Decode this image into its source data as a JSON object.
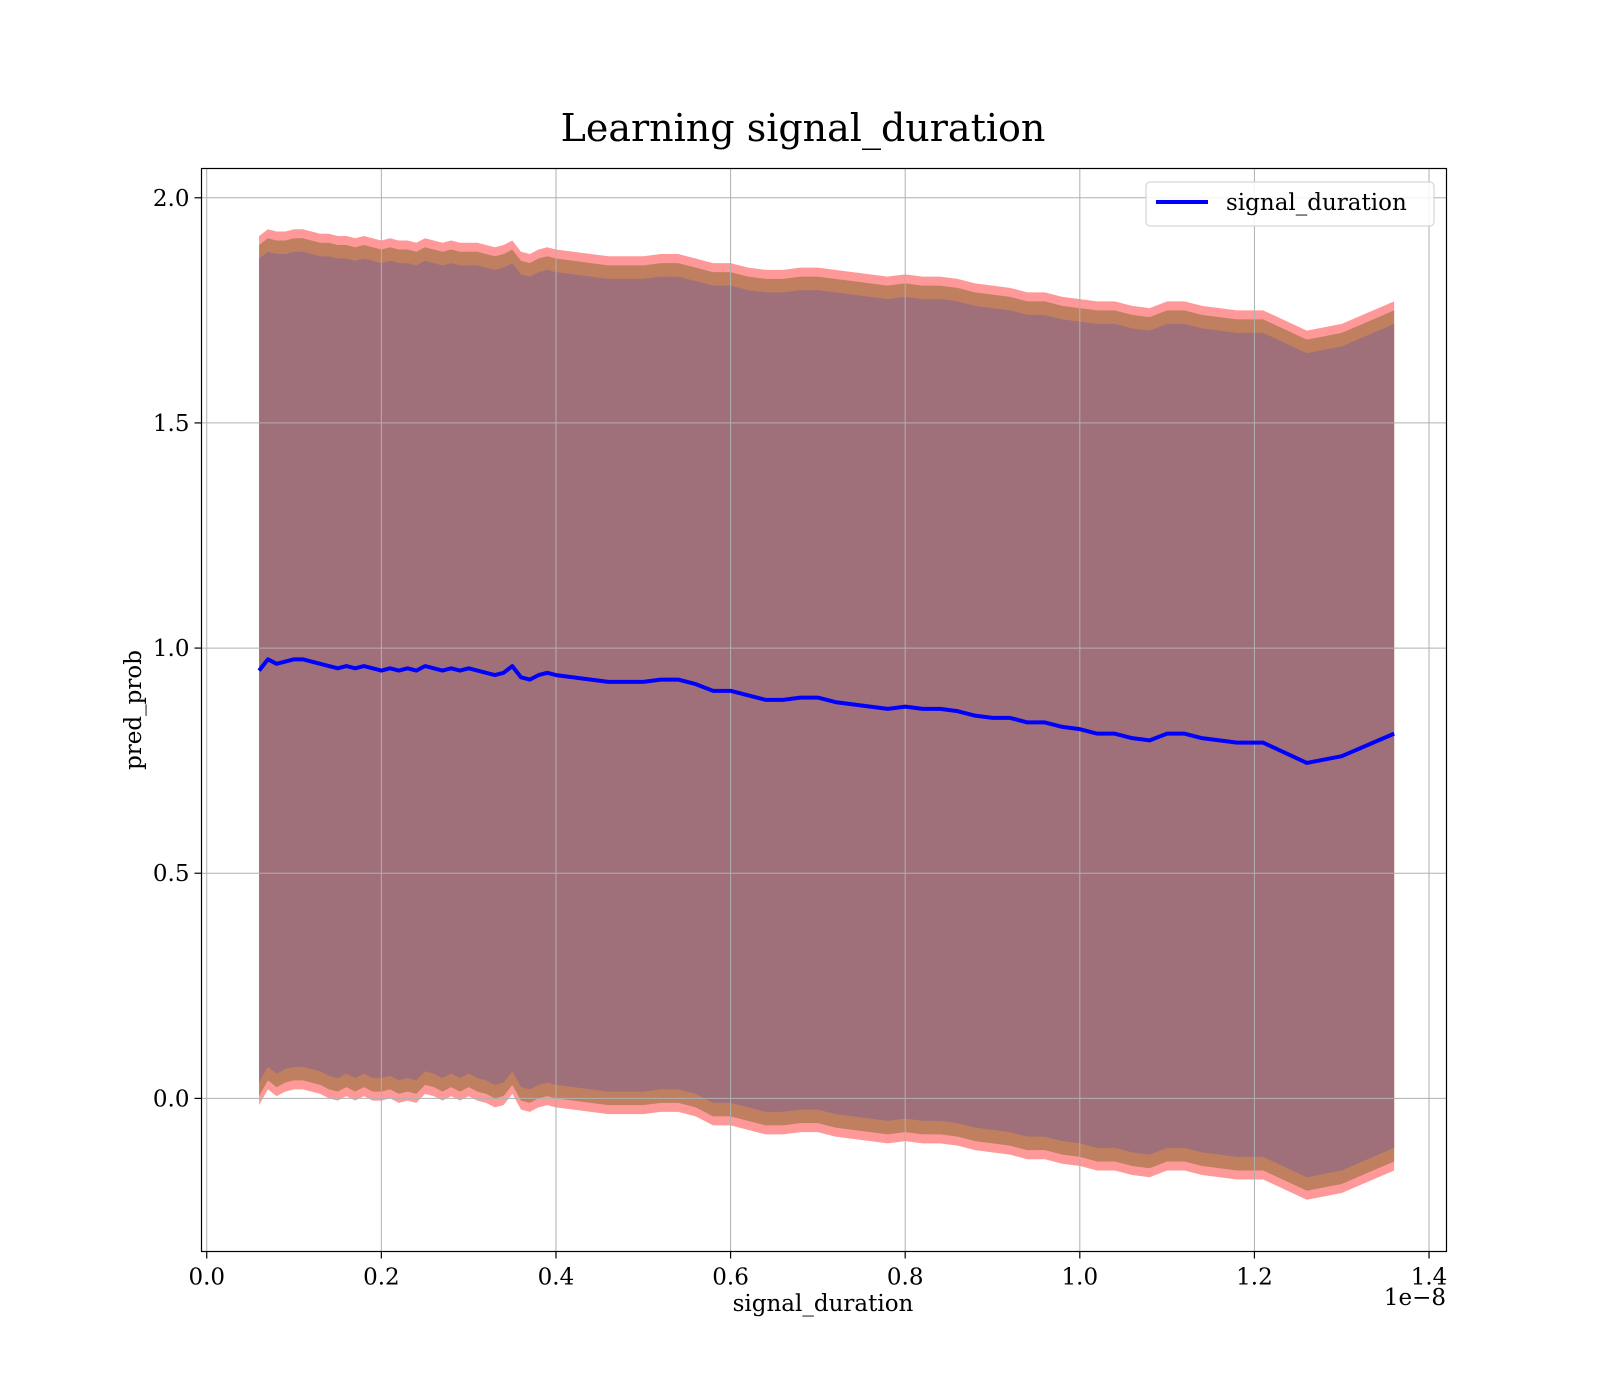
{
  "chart_data": {
    "type": "line",
    "title": "Learning signal_duration",
    "xlabel": "signal_duration",
    "ylabel": "pred_prob",
    "x_offset_text": "1e−8",
    "xlim": [
      -0.006,
      1.42
    ],
    "ylim": [
      -0.34,
      2.065
    ],
    "x_ticks": [
      0.0,
      0.2,
      0.4,
      0.6,
      0.8,
      1.0,
      1.2,
      1.4
    ],
    "x_tick_labels": [
      "0.0",
      "0.2",
      "0.4",
      "0.6",
      "0.8",
      "1.0",
      "1.2",
      "1.4"
    ],
    "y_ticks": [
      0.0,
      0.5,
      1.0,
      1.5,
      2.0
    ],
    "y_tick_labels": [
      "0.0",
      "0.5",
      "1.0",
      "1.5",
      "2.0"
    ],
    "grid": true,
    "legend_position": "top-right",
    "x_scale_note": "x values in units of 1e-8",
    "series": [
      {
        "name": "signal_duration",
        "color": "#0000ff",
        "x": [
          0.06,
          0.07,
          0.08,
          0.09,
          0.1,
          0.11,
          0.12,
          0.13,
          0.14,
          0.15,
          0.16,
          0.17,
          0.18,
          0.19,
          0.2,
          0.21,
          0.22,
          0.23,
          0.24,
          0.25,
          0.26,
          0.27,
          0.28,
          0.29,
          0.3,
          0.31,
          0.32,
          0.33,
          0.34,
          0.35,
          0.36,
          0.37,
          0.38,
          0.39,
          0.4,
          0.42,
          0.44,
          0.46,
          0.48,
          0.5,
          0.52,
          0.54,
          0.56,
          0.58,
          0.6,
          0.62,
          0.64,
          0.66,
          0.68,
          0.7,
          0.72,
          0.74,
          0.76,
          0.78,
          0.8,
          0.82,
          0.84,
          0.86,
          0.88,
          0.9,
          0.92,
          0.94,
          0.96,
          0.98,
          1.0,
          1.02,
          1.04,
          1.06,
          1.08,
          1.1,
          1.12,
          1.14,
          1.16,
          1.18,
          1.21,
          1.26,
          1.3,
          1.36
        ],
        "y": [
          0.95,
          0.975,
          0.965,
          0.97,
          0.975,
          0.975,
          0.97,
          0.965,
          0.96,
          0.955,
          0.96,
          0.955,
          0.96,
          0.955,
          0.95,
          0.955,
          0.95,
          0.955,
          0.95,
          0.96,
          0.955,
          0.95,
          0.955,
          0.95,
          0.955,
          0.95,
          0.945,
          0.94,
          0.945,
          0.96,
          0.935,
          0.93,
          0.94,
          0.945,
          0.94,
          0.935,
          0.93,
          0.925,
          0.925,
          0.925,
          0.93,
          0.93,
          0.92,
          0.905,
          0.905,
          0.895,
          0.885,
          0.885,
          0.89,
          0.89,
          0.88,
          0.875,
          0.87,
          0.865,
          0.87,
          0.865,
          0.865,
          0.86,
          0.85,
          0.845,
          0.845,
          0.835,
          0.835,
          0.825,
          0.82,
          0.81,
          0.81,
          0.8,
          0.795,
          0.81,
          0.81,
          0.8,
          0.795,
          0.79,
          0.79,
          0.745,
          0.76,
          0.81
        ]
      }
    ],
    "bands": [
      {
        "color": "#ff9999",
        "upper": [
          1.915,
          1.93,
          1.925,
          1.925,
          1.93,
          1.93,
          1.925,
          1.92,
          1.92,
          1.915,
          1.915,
          1.91,
          1.915,
          1.91,
          1.905,
          1.91,
          1.905,
          1.905,
          1.9,
          1.91,
          1.905,
          1.9,
          1.905,
          1.9,
          1.9,
          1.9,
          1.895,
          1.89,
          1.895,
          1.905,
          1.88,
          1.875,
          1.885,
          1.89,
          1.885,
          1.88,
          1.875,
          1.87,
          1.87,
          1.87,
          1.875,
          1.875,
          1.865,
          1.855,
          1.855,
          1.845,
          1.84,
          1.84,
          1.845,
          1.845,
          1.84,
          1.835,
          1.83,
          1.825,
          1.83,
          1.825,
          1.825,
          1.82,
          1.81,
          1.805,
          1.8,
          1.79,
          1.79,
          1.78,
          1.775,
          1.77,
          1.77,
          1.76,
          1.755,
          1.77,
          1.77,
          1.76,
          1.755,
          1.75,
          1.75,
          1.705,
          1.72,
          1.77
        ],
        "lower": [
          -0.015,
          0.02,
          0.005,
          0.015,
          0.02,
          0.02,
          0.015,
          0.01,
          0.0,
          -0.005,
          0.005,
          -0.005,
          0.005,
          -0.005,
          -0.005,
          0.0,
          -0.01,
          -0.005,
          -0.01,
          0.01,
          0.005,
          -0.005,
          0.005,
          -0.005,
          0.005,
          -0.005,
          -0.01,
          -0.02,
          -0.015,
          0.01,
          -0.025,
          -0.03,
          -0.02,
          -0.015,
          -0.02,
          -0.025,
          -0.03,
          -0.035,
          -0.035,
          -0.035,
          -0.03,
          -0.03,
          -0.04,
          -0.06,
          -0.06,
          -0.07,
          -0.08,
          -0.08,
          -0.075,
          -0.075,
          -0.085,
          -0.09,
          -0.095,
          -0.1,
          -0.095,
          -0.1,
          -0.1,
          -0.105,
          -0.115,
          -0.12,
          -0.125,
          -0.135,
          -0.135,
          -0.145,
          -0.15,
          -0.16,
          -0.16,
          -0.17,
          -0.175,
          -0.16,
          -0.16,
          -0.17,
          -0.175,
          -0.18,
          -0.18,
          -0.225,
          -0.21,
          -0.16
        ]
      },
      {
        "color": "#c08060",
        "upper": [
          1.895,
          1.91,
          1.905,
          1.905,
          1.91,
          1.91,
          1.905,
          1.9,
          1.9,
          1.895,
          1.895,
          1.89,
          1.895,
          1.89,
          1.885,
          1.89,
          1.885,
          1.885,
          1.88,
          1.89,
          1.885,
          1.88,
          1.885,
          1.88,
          1.88,
          1.88,
          1.875,
          1.87,
          1.875,
          1.885,
          1.86,
          1.855,
          1.865,
          1.87,
          1.865,
          1.86,
          1.855,
          1.85,
          1.85,
          1.85,
          1.855,
          1.855,
          1.845,
          1.835,
          1.835,
          1.825,
          1.82,
          1.82,
          1.825,
          1.825,
          1.82,
          1.815,
          1.81,
          1.805,
          1.81,
          1.805,
          1.805,
          1.8,
          1.79,
          1.785,
          1.78,
          1.77,
          1.77,
          1.76,
          1.755,
          1.75,
          1.75,
          1.74,
          1.735,
          1.75,
          1.75,
          1.74,
          1.735,
          1.73,
          1.73,
          1.685,
          1.7,
          1.75
        ],
        "lower": [
          0.005,
          0.04,
          0.025,
          0.035,
          0.04,
          0.04,
          0.035,
          0.03,
          0.02,
          0.015,
          0.025,
          0.015,
          0.025,
          0.015,
          0.015,
          0.02,
          0.01,
          0.015,
          0.01,
          0.03,
          0.025,
          0.015,
          0.025,
          0.015,
          0.025,
          0.015,
          0.01,
          0.0,
          0.005,
          0.03,
          -0.005,
          -0.01,
          0.0,
          0.005,
          0.0,
          -0.005,
          -0.01,
          -0.015,
          -0.015,
          -0.015,
          -0.01,
          -0.01,
          -0.02,
          -0.04,
          -0.04,
          -0.05,
          -0.06,
          -0.06,
          -0.055,
          -0.055,
          -0.065,
          -0.07,
          -0.075,
          -0.08,
          -0.075,
          -0.08,
          -0.08,
          -0.085,
          -0.095,
          -0.1,
          -0.105,
          -0.115,
          -0.115,
          -0.125,
          -0.13,
          -0.14,
          -0.14,
          -0.15,
          -0.155,
          -0.14,
          -0.14,
          -0.15,
          -0.155,
          -0.16,
          -0.16,
          -0.205,
          -0.19,
          -0.14
        ]
      },
      {
        "color": "#a0707a",
        "upper": [
          1.865,
          1.88,
          1.875,
          1.875,
          1.88,
          1.88,
          1.875,
          1.87,
          1.87,
          1.865,
          1.865,
          1.86,
          1.865,
          1.86,
          1.855,
          1.86,
          1.855,
          1.855,
          1.85,
          1.86,
          1.855,
          1.85,
          1.855,
          1.85,
          1.85,
          1.85,
          1.845,
          1.84,
          1.845,
          1.855,
          1.83,
          1.825,
          1.835,
          1.84,
          1.835,
          1.83,
          1.825,
          1.82,
          1.82,
          1.82,
          1.825,
          1.825,
          1.815,
          1.805,
          1.805,
          1.795,
          1.79,
          1.79,
          1.795,
          1.795,
          1.79,
          1.785,
          1.78,
          1.775,
          1.78,
          1.775,
          1.775,
          1.77,
          1.76,
          1.755,
          1.75,
          1.74,
          1.74,
          1.73,
          1.725,
          1.72,
          1.72,
          1.71,
          1.705,
          1.72,
          1.72,
          1.71,
          1.705,
          1.7,
          1.7,
          1.655,
          1.67,
          1.72
        ],
        "lower": [
          0.035,
          0.07,
          0.055,
          0.065,
          0.07,
          0.07,
          0.065,
          0.06,
          0.05,
          0.045,
          0.055,
          0.045,
          0.055,
          0.045,
          0.045,
          0.05,
          0.04,
          0.045,
          0.04,
          0.06,
          0.055,
          0.045,
          0.055,
          0.045,
          0.055,
          0.045,
          0.04,
          0.03,
          0.035,
          0.06,
          0.025,
          0.02,
          0.03,
          0.035,
          0.03,
          0.025,
          0.02,
          0.015,
          0.015,
          0.015,
          0.02,
          0.02,
          0.01,
          -0.01,
          -0.01,
          -0.02,
          -0.03,
          -0.03,
          -0.025,
          -0.025,
          -0.035,
          -0.04,
          -0.045,
          -0.05,
          -0.045,
          -0.05,
          -0.05,
          -0.055,
          -0.065,
          -0.07,
          -0.075,
          -0.085,
          -0.085,
          -0.095,
          -0.1,
          -0.11,
          -0.11,
          -0.12,
          -0.125,
          -0.11,
          -0.11,
          -0.12,
          -0.125,
          -0.13,
          -0.13,
          -0.175,
          -0.16,
          -0.11
        ]
      }
    ]
  }
}
